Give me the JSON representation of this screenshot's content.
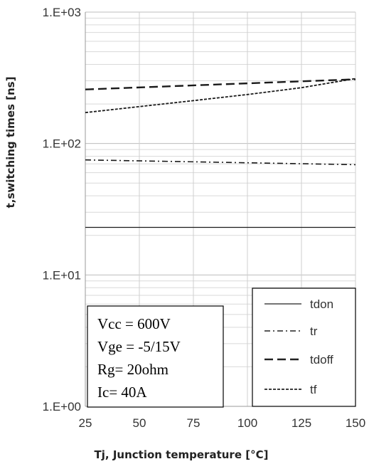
{
  "chart_data": {
    "type": "line",
    "xlabel": "Tj, Junction temperature [°C]",
    "ylabel": "t,switching times [ns]",
    "x_ticks": [
      "25",
      "50",
      "75",
      "100",
      "125",
      "150"
    ],
    "y_ticks": [
      "1.E+00",
      "1.E+01",
      "1.E+02",
      "1.E+03"
    ],
    "xlim": [
      25,
      150
    ],
    "ylim": [
      1,
      1000
    ],
    "y_scale": "log",
    "grid": true,
    "legend_position": "bottom-right",
    "series": [
      {
        "name": "tdon",
        "style": "solid",
        "x": [
          25,
          150
        ],
        "values": [
          23,
          23
        ]
      },
      {
        "name": "tr",
        "style": "dash-dot",
        "x": [
          25,
          150
        ],
        "values": [
          75,
          69
        ]
      },
      {
        "name": "tdoff",
        "style": "long-dash",
        "x": [
          25,
          150
        ],
        "values": [
          258,
          308
        ]
      },
      {
        "name": "tf",
        "style": "short-dash",
        "x": [
          25,
          50,
          75,
          100,
          125,
          150
        ],
        "values": [
          172,
          191,
          212,
          236,
          266,
          312
        ]
      }
    ],
    "annotation": [
      "Vcc = 600V",
      "Vge = -5/15V",
      "Rg= 20ohm",
      "Ic= 40A"
    ]
  }
}
